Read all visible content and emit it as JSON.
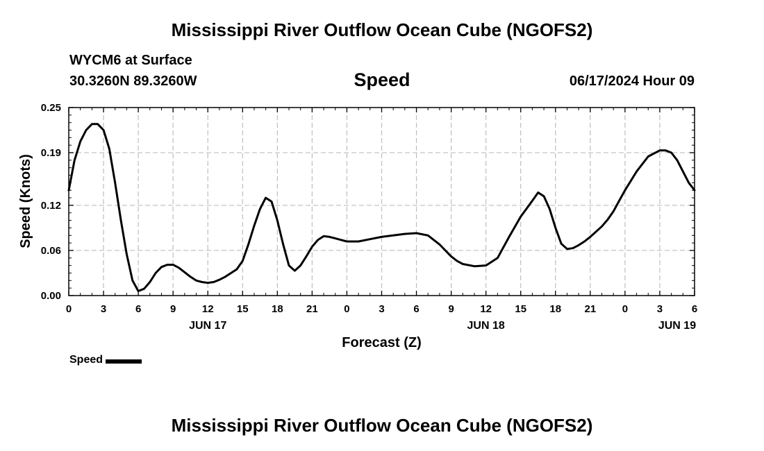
{
  "header": {
    "title": "Mississippi River Outflow Ocean Cube (NGOFS2)",
    "station": "WYCM6 at Surface",
    "coords": "30.3260N  89.3260W",
    "timestamp": "06/17/2024 Hour 09",
    "footer_title": "Mississippi River Outflow Ocean Cube (NGOFS2)"
  },
  "chart_data": {
    "type": "line",
    "title": "Speed",
    "xlabel": "Forecast (Z)",
    "ylabel": "Speed (Knots)",
    "xlim": [
      0,
      54
    ],
    "ylim": [
      0,
      0.25
    ],
    "yticks": [
      0.0,
      0.06,
      0.12,
      0.19,
      0.25
    ],
    "ytick_labels": [
      "0.00",
      "0.06",
      "0.12",
      "0.19",
      "0.25"
    ],
    "xticks": [
      0,
      3,
      6,
      9,
      12,
      15,
      18,
      21,
      24,
      27,
      30,
      33,
      36,
      39,
      42,
      45,
      48,
      51,
      54
    ],
    "xtick_labels": [
      "0",
      "3",
      "6",
      "9",
      "12",
      "15",
      "18",
      "21",
      "0",
      "3",
      "6",
      "9",
      "12",
      "15",
      "18",
      "21",
      "0",
      "3",
      "6"
    ],
    "day_labels": [
      {
        "x": 12,
        "label": "JUN 17"
      },
      {
        "x": 36,
        "label": "JUN 18"
      },
      {
        "x": 52.5,
        "label": "JUN 19"
      }
    ],
    "grid": true,
    "legend": "bottom-left",
    "series": [
      {
        "name": "Speed",
        "color": "#000000",
        "x": [
          0,
          0.5,
          1,
          1.5,
          2,
          2.5,
          3,
          3.5,
          4,
          4.5,
          5,
          5.5,
          6,
          6.5,
          7,
          7.5,
          8,
          8.5,
          9,
          9.5,
          10,
          10.5,
          11,
          11.5,
          12,
          12.5,
          13,
          13.5,
          14,
          14.5,
          15,
          15.5,
          16,
          16.5,
          17,
          17.5,
          18,
          18.5,
          19,
          19.5,
          20,
          20.5,
          21,
          21.5,
          22,
          22.5,
          23,
          23.5,
          24,
          25,
          26,
          27,
          28,
          29,
          30,
          31,
          32,
          33,
          33.5,
          34,
          35,
          36,
          37,
          38,
          39,
          40,
          40.5,
          41,
          41.5,
          42,
          42.5,
          43,
          43.5,
          44,
          44.5,
          45,
          45.5,
          46,
          46.5,
          47,
          47.5,
          48,
          49,
          50,
          51,
          51.5,
          52,
          52.5,
          53,
          53.5,
          54
        ],
        "y": [
          0.14,
          0.18,
          0.205,
          0.22,
          0.228,
          0.228,
          0.22,
          0.195,
          0.15,
          0.1,
          0.055,
          0.02,
          0.006,
          0.009,
          0.018,
          0.03,
          0.038,
          0.041,
          0.041,
          0.037,
          0.031,
          0.025,
          0.02,
          0.018,
          0.017,
          0.018,
          0.021,
          0.025,
          0.03,
          0.035,
          0.046,
          0.068,
          0.093,
          0.115,
          0.13,
          0.125,
          0.1,
          0.068,
          0.04,
          0.033,
          0.04,
          0.052,
          0.065,
          0.074,
          0.079,
          0.078,
          0.076,
          0.074,
          0.072,
          0.072,
          0.075,
          0.078,
          0.08,
          0.082,
          0.083,
          0.08,
          0.068,
          0.052,
          0.046,
          0.042,
          0.039,
          0.04,
          0.05,
          0.078,
          0.105,
          0.126,
          0.137,
          0.132,
          0.115,
          0.09,
          0.069,
          0.062,
          0.063,
          0.067,
          0.072,
          0.078,
          0.085,
          0.092,
          0.101,
          0.112,
          0.126,
          0.14,
          0.165,
          0.185,
          0.193,
          0.193,
          0.19,
          0.18,
          0.165,
          0.15,
          0.14
        ]
      }
    ]
  }
}
